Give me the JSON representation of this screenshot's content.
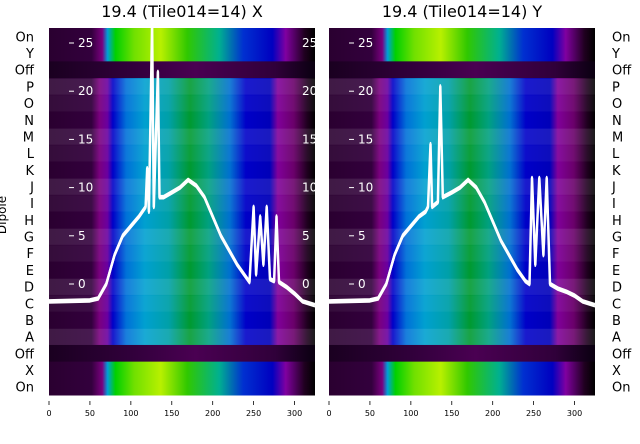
{
  "chart_data": [
    {
      "type": "heatmap",
      "title": "19.4 (Tile014=14) X",
      "ylabel": "Dipole",
      "row_labels": [
        "On",
        "Y",
        "Off",
        "P",
        "O",
        "N",
        "M",
        "L",
        "K",
        "J",
        "I",
        "H",
        "G",
        "F",
        "E",
        "D",
        "C",
        "B",
        "A",
        "Off",
        "X",
        "On"
      ],
      "row_kinds": [
        "on",
        "on",
        "off",
        "dipole",
        "dipole",
        "dipole",
        "dipole",
        "dipole",
        "dipole",
        "dipole",
        "dipole",
        "dipole",
        "dipole",
        "dipole",
        "dipole",
        "dipole",
        "dipole",
        "dipole",
        "dipole",
        "off",
        "on",
        "on"
      ],
      "x_ticks": [
        0,
        50,
        100,
        150,
        200,
        250,
        300
      ],
      "xlim": [
        0,
        325
      ],
      "overlay_line": {
        "ylim_ticks": [
          0,
          5,
          10,
          15,
          20,
          25
        ],
        "points": [
          [
            0,
            -1.8
          ],
          [
            50,
            -1.7
          ],
          [
            60,
            -1.5
          ],
          [
            70,
            0
          ],
          [
            80,
            3
          ],
          [
            90,
            5
          ],
          [
            100,
            6
          ],
          [
            110,
            7
          ],
          [
            118,
            8
          ],
          [
            120,
            12
          ],
          [
            122,
            7.5
          ],
          [
            126,
            27
          ],
          [
            128,
            8
          ],
          [
            133,
            22
          ],
          [
            135,
            9
          ],
          [
            140,
            9
          ],
          [
            150,
            9.5
          ],
          [
            160,
            10
          ],
          [
            170,
            10.8
          ],
          [
            180,
            10.2
          ],
          [
            190,
            9
          ],
          [
            200,
            7
          ],
          [
            210,
            5
          ],
          [
            220,
            3.5
          ],
          [
            230,
            2
          ],
          [
            240,
            0.8
          ],
          [
            245,
            0.2
          ],
          [
            250,
            8
          ],
          [
            253,
            1
          ],
          [
            258,
            7
          ],
          [
            262,
            2
          ],
          [
            266,
            8
          ],
          [
            270,
            0.5
          ],
          [
            275,
            0.3
          ],
          [
            278,
            7
          ],
          [
            281,
            0.2
          ],
          [
            290,
            -0.3
          ],
          [
            300,
            -1
          ],
          [
            310,
            -1.8
          ],
          [
            325,
            -2.2
          ]
        ]
      }
    },
    {
      "type": "heatmap",
      "title": "19.4 (Tile014=14) Y",
      "row_labels": [
        "On",
        "Y",
        "Off",
        "P",
        "O",
        "N",
        "M",
        "L",
        "K",
        "J",
        "I",
        "H",
        "G",
        "F",
        "E",
        "D",
        "C",
        "B",
        "A",
        "Off",
        "X",
        "On"
      ],
      "row_kinds": [
        "on",
        "on",
        "off",
        "dipole",
        "dipole",
        "dipole",
        "dipole",
        "dipole",
        "dipole",
        "dipole",
        "dipole",
        "dipole",
        "dipole",
        "dipole",
        "dipole",
        "dipole",
        "dipole",
        "dipole",
        "dipole",
        "off",
        "on",
        "on"
      ],
      "x_ticks": [
        0,
        50,
        100,
        150,
        200,
        250,
        300
      ],
      "xlim": [
        0,
        325
      ],
      "overlay_line": {
        "ylim_ticks": [
          0,
          5,
          10,
          15,
          20,
          25
        ],
        "points": [
          [
            0,
            -1.8
          ],
          [
            50,
            -1.7
          ],
          [
            60,
            -1.5
          ],
          [
            70,
            0
          ],
          [
            80,
            3
          ],
          [
            90,
            5
          ],
          [
            100,
            6
          ],
          [
            110,
            7
          ],
          [
            118,
            7.5
          ],
          [
            121,
            8
          ],
          [
            124,
            14.5
          ],
          [
            126,
            8
          ],
          [
            133,
            8.5
          ],
          [
            136,
            20.5
          ],
          [
            139,
            9
          ],
          [
            150,
            9.5
          ],
          [
            160,
            10
          ],
          [
            170,
            10.8
          ],
          [
            180,
            10
          ],
          [
            190,
            8.5
          ],
          [
            200,
            6.5
          ],
          [
            210,
            4.5
          ],
          [
            220,
            3
          ],
          [
            230,
            1.5
          ],
          [
            240,
            0.3
          ],
          [
            245,
            0
          ],
          [
            248,
            11
          ],
          [
            252,
            2
          ],
          [
            257,
            11
          ],
          [
            262,
            3
          ],
          [
            266,
            11
          ],
          [
            270,
            0
          ],
          [
            280,
            -0.5
          ],
          [
            290,
            -0.8
          ],
          [
            300,
            -1.2
          ],
          [
            310,
            -1.8
          ],
          [
            325,
            -2.2
          ]
        ]
      }
    }
  ],
  "colors": {
    "line": "#ffffff",
    "off_row": "#3a0045",
    "background_dark": "#2a0030"
  }
}
